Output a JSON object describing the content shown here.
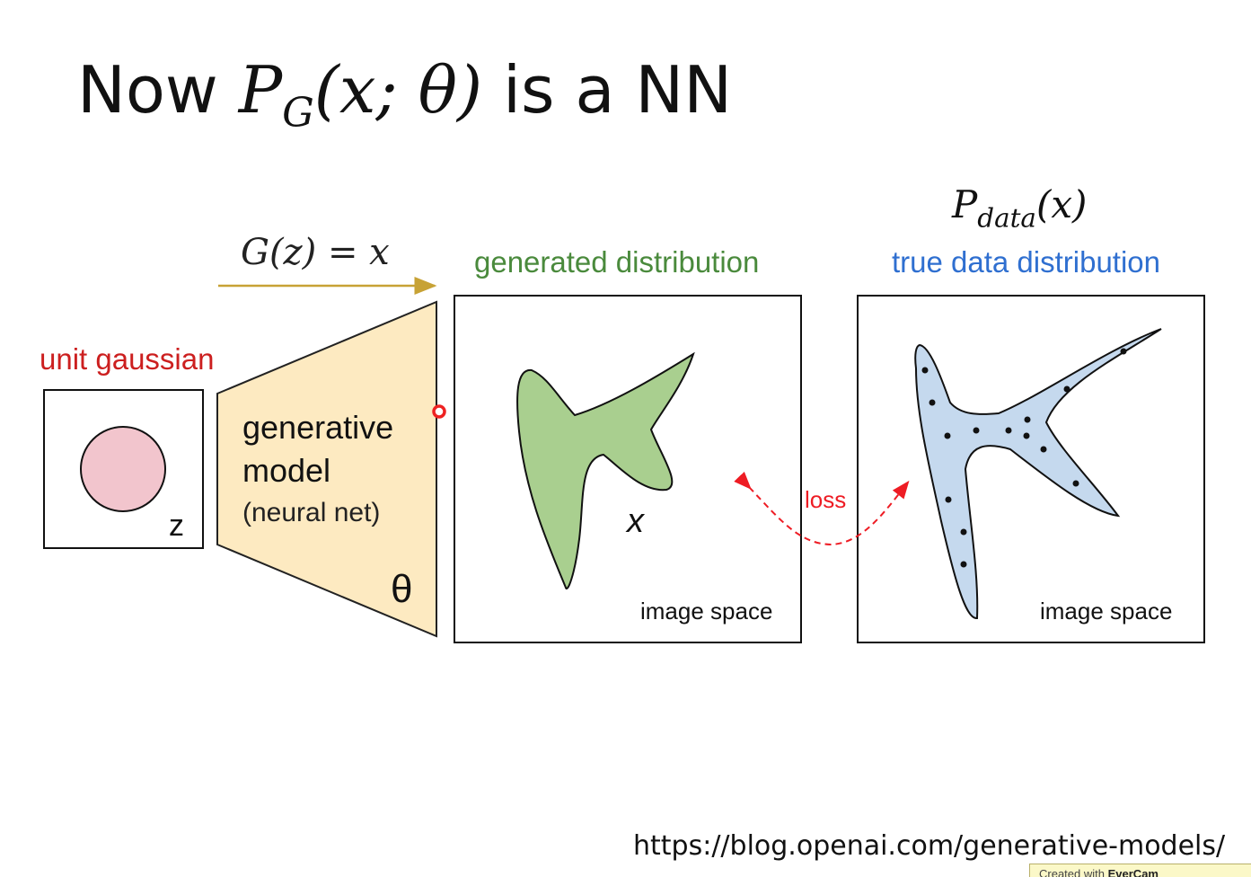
{
  "slide": {
    "title_prefix": "Now ",
    "title_P": "P",
    "title_sub": "G",
    "title_args": "(x; θ)",
    "title_suffix": " is a NN",
    "url": "https://blog.openai.com/generative-models/"
  },
  "diagram": {
    "mapping_label": "G(z) = x",
    "pdata_P": "P",
    "pdata_sub": "data",
    "pdata_args": "(x)",
    "generated_label": "generated distribution",
    "true_label": "true data distribution",
    "unit_gaussian_label": "unit gaussian",
    "z_label": "z",
    "model_line1": "generative",
    "model_line2": "model",
    "model_line3": "(neural net)",
    "theta_label": "θ",
    "x_label": "x",
    "image_space_left": "image space",
    "image_space_right": "image space",
    "loss_label": "loss",
    "colors": {
      "generated": "#a9cf8f",
      "true_data": "#c5d9ee",
      "gaussian_circle": "#f2c5cd",
      "model_fill": "#fdeac1",
      "arrow": "#c7a235",
      "loss": "#ee1c24"
    }
  },
  "watermark": {
    "prefix": "Created with",
    "brand": "EverCam"
  }
}
